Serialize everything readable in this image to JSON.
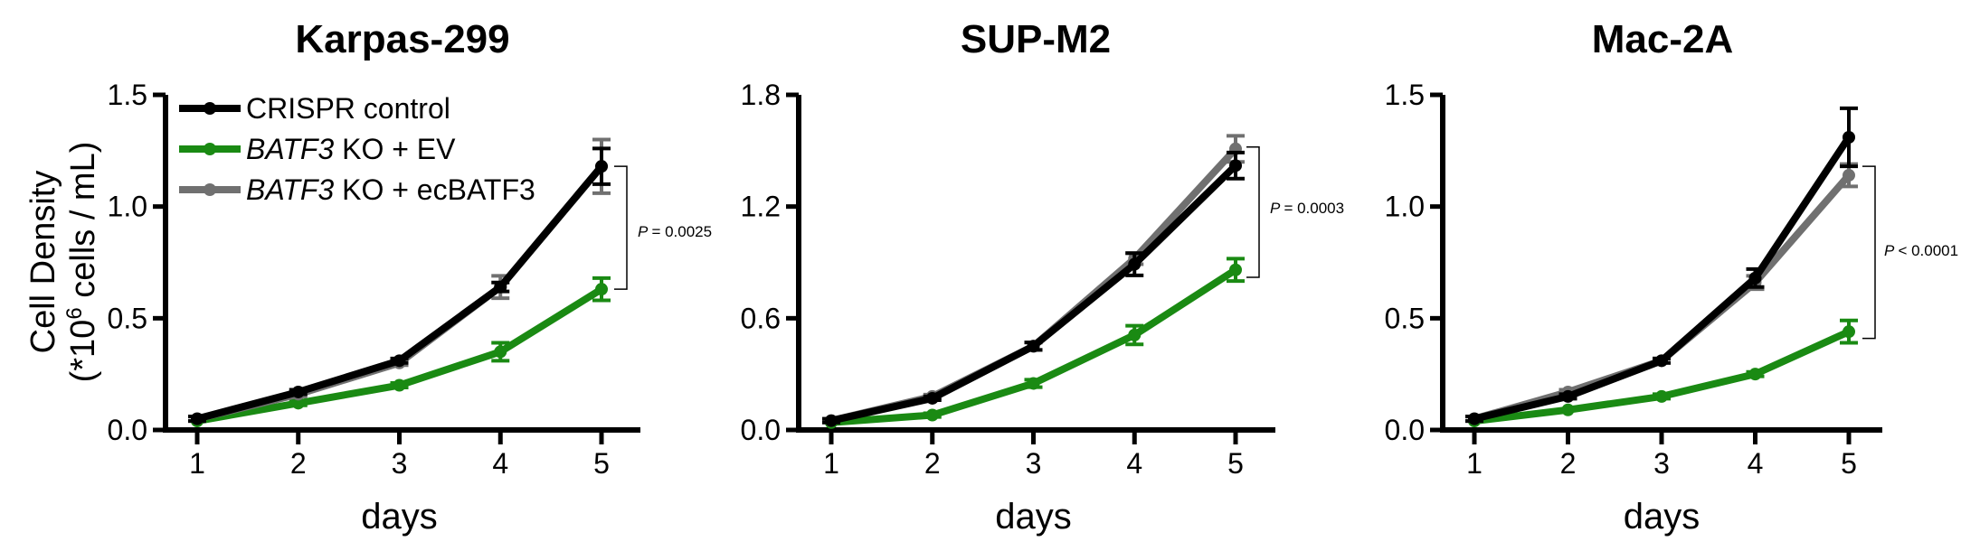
{
  "figure": {
    "ylabel_line1": "Cell Density",
    "ylabel_line2_prefix": "(*10",
    "ylabel_line2_sup": "6",
    "ylabel_line2_suffix": " cells / mL)"
  },
  "legend": {
    "items": [
      {
        "italic": "",
        "text": "CRISPR control",
        "color": "#000000"
      },
      {
        "italic": "BATF3",
        "text": " KO + EV",
        "color": "#1a8a13"
      },
      {
        "italic": "BATF3",
        "text": " KO + ecBATF3",
        "color": "#707070"
      }
    ]
  },
  "colors": {
    "control": "#000000",
    "ev": "#1a8a13",
    "ec": "#707070"
  },
  "chart_data": [
    {
      "type": "line",
      "title": "Karpas-299",
      "xlabel": "days",
      "ylabel": "Cell Density (*10^6 cells / mL)",
      "x": [
        1,
        2,
        3,
        4,
        5
      ],
      "x_ticks": [
        "1",
        "2",
        "3",
        "4",
        "5"
      ],
      "ylim": [
        0,
        1.5
      ],
      "y_ticks": [
        "0.0",
        "0.5",
        "1.0",
        "1.5"
      ],
      "series": [
        {
          "name": "CRISPR control",
          "values": [
            0.05,
            0.17,
            0.31,
            0.64,
            1.18
          ],
          "errors": [
            0.01,
            0.01,
            0.01,
            0.02,
            0.08
          ]
        },
        {
          "name": "BATF3 KO + EV",
          "values": [
            0.04,
            0.12,
            0.2,
            0.35,
            0.63
          ],
          "errors": [
            0.005,
            0.01,
            0.01,
            0.04,
            0.05
          ]
        },
        {
          "name": "BATF3 KO + ecBATF3",
          "values": [
            0.05,
            0.16,
            0.3,
            0.64,
            1.18
          ],
          "errors": [
            0.01,
            0.01,
            0.01,
            0.05,
            0.12
          ]
        }
      ],
      "pvalue": "= 0.0025",
      "bracket": [
        0.63,
        1.18
      ]
    },
    {
      "type": "line",
      "title": "SUP-M2",
      "xlabel": "days",
      "x": [
        1,
        2,
        3,
        4,
        5
      ],
      "x_ticks": [
        "1",
        "2",
        "3",
        "4",
        "5"
      ],
      "ylim": [
        0,
        1.8
      ],
      "y_ticks": [
        "0.0",
        "0.6",
        "1.2",
        "1.8"
      ],
      "series": [
        {
          "name": "CRISPR control",
          "values": [
            0.05,
            0.17,
            0.45,
            0.89,
            1.42
          ],
          "errors": [
            0.01,
            0.01,
            0.02,
            0.06,
            0.07
          ]
        },
        {
          "name": "BATF3 KO + EV",
          "values": [
            0.04,
            0.08,
            0.25,
            0.51,
            0.86
          ],
          "errors": [
            0.005,
            0.01,
            0.02,
            0.05,
            0.06
          ]
        },
        {
          "name": "BATF3 KO + ecBATF3",
          "values": [
            0.05,
            0.18,
            0.45,
            0.92,
            1.51
          ],
          "errors": [
            0.01,
            0.01,
            0.02,
            0.03,
            0.07
          ]
        }
      ],
      "pvalue": "= 0.0003",
      "bracket": [
        0.82,
        1.52
      ]
    },
    {
      "type": "line",
      "title": "Mac-2A",
      "xlabel": "days",
      "x": [
        1,
        2,
        3,
        4,
        5
      ],
      "x_ticks": [
        "1",
        "2",
        "3",
        "4",
        "5"
      ],
      "ylim": [
        0,
        1.5
      ],
      "y_ticks": [
        "0.0",
        "0.5",
        "1.0",
        "1.5"
      ],
      "series": [
        {
          "name": "CRISPR control",
          "values": [
            0.05,
            0.15,
            0.31,
            0.68,
            1.31
          ],
          "errors": [
            0.01,
            0.01,
            0.01,
            0.04,
            0.13
          ]
        },
        {
          "name": "BATF3 KO + EV",
          "values": [
            0.04,
            0.09,
            0.15,
            0.25,
            0.44
          ],
          "errors": [
            0.005,
            0.005,
            0.01,
            0.01,
            0.05
          ]
        },
        {
          "name": "BATF3 KO + ecBATF3",
          "values": [
            0.05,
            0.17,
            0.31,
            0.66,
            1.14
          ],
          "errors": [
            0.01,
            0.01,
            0.01,
            0.03,
            0.05
          ]
        }
      ],
      "pvalue": "< 0.0001",
      "bracket": [
        0.41,
        1.18
      ]
    }
  ]
}
